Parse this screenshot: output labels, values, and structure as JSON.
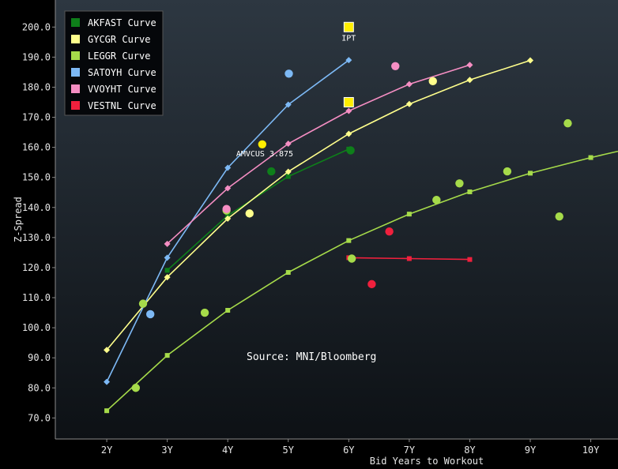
{
  "chart_data": {
    "type": "scatter",
    "title": "",
    "xlabel": "Bid Years to Workout",
    "ylabel": "Z-Spread",
    "xlim": [
      1.15,
      10.45
    ],
    "ylim": [
      63,
      209
    ],
    "x_ticks": [
      {
        "value": 2,
        "label": "2Y"
      },
      {
        "value": 3,
        "label": "3Y"
      },
      {
        "value": 4,
        "label": "4Y"
      },
      {
        "value": 5,
        "label": "5Y"
      },
      {
        "value": 6,
        "label": "6Y"
      },
      {
        "value": 7,
        "label": "7Y"
      },
      {
        "value": 8,
        "label": "8Y"
      },
      {
        "value": 9,
        "label": "9Y"
      },
      {
        "value": 10,
        "label": "10Y"
      }
    ],
    "y_ticks": [
      {
        "value": 70,
        "label": "70.0"
      },
      {
        "value": 80,
        "label": "80.0"
      },
      {
        "value": 90,
        "label": "90.0"
      },
      {
        "value": 100,
        "label": "100.0"
      },
      {
        "value": 110,
        "label": "110.0"
      },
      {
        "value": 120,
        "label": "120.0"
      },
      {
        "value": 130,
        "label": "130.0"
      },
      {
        "value": 140,
        "label": "140.0"
      },
      {
        "value": 150,
        "label": "150.0"
      },
      {
        "value": 160,
        "label": "160.0"
      },
      {
        "value": 170,
        "label": "170.0"
      },
      {
        "value": 180,
        "label": "180.0"
      },
      {
        "value": 190,
        "label": "190.0"
      },
      {
        "value": 200,
        "label": "200.0"
      }
    ],
    "grid": false,
    "legend_position": "top-left",
    "source_note": "Source: MNI/Bloomberg",
    "series": [
      {
        "name": "AKFAST Curve",
        "color": "#0e7f1a",
        "curve": [
          [
            3,
            119.1
          ],
          [
            4,
            137.3
          ],
          [
            5,
            150.3
          ],
          [
            6,
            159.4
          ]
        ],
        "bonds": [
          [
            4.72,
            152.0
          ],
          [
            6.03,
            159.0
          ]
        ]
      },
      {
        "name": "GYCGR Curve",
        "color": "#ffff8c",
        "curve": [
          [
            2,
            92.6
          ],
          [
            3,
            116.8
          ],
          [
            4,
            136.3
          ],
          [
            5,
            151.9
          ],
          [
            6,
            164.5
          ],
          [
            7,
            174.4
          ],
          [
            8,
            182.4
          ],
          [
            9,
            188.9
          ]
        ],
        "bonds": [
          [
            4.36,
            138.0
          ],
          [
            7.39,
            182.0
          ]
        ]
      },
      {
        "name": "LEGGR Curve",
        "color": "#a6db4a",
        "curve": [
          [
            2,
            72.4
          ],
          [
            3,
            90.8
          ],
          [
            4,
            105.8
          ],
          [
            5,
            118.4
          ],
          [
            6,
            129.0
          ],
          [
            7,
            137.8
          ],
          [
            8,
            145.2
          ],
          [
            9,
            151.4
          ],
          [
            10,
            156.6
          ],
          [
            10.45,
            158.7
          ]
        ],
        "bonds": [
          [
            2.48,
            80.0
          ],
          [
            2.6,
            108.0
          ],
          [
            3.62,
            105.0
          ],
          [
            3.98,
            139.0
          ],
          [
            6.05,
            123.0
          ],
          [
            7.45,
            142.5
          ],
          [
            7.83,
            148.0
          ],
          [
            8.62,
            152.0
          ],
          [
            9.48,
            137.0
          ],
          [
            9.62,
            168.0
          ]
        ]
      },
      {
        "name": "SATOYH Curve",
        "color": "#7db9f5",
        "curve": [
          [
            2,
            82.0
          ],
          [
            3,
            123.3
          ],
          [
            4,
            153.2
          ],
          [
            5,
            174.2
          ],
          [
            6,
            189.0
          ]
        ],
        "bonds": [
          [
            2.72,
            104.5
          ],
          [
            5.01,
            184.5
          ]
        ]
      },
      {
        "name": "VVOYHT Curve",
        "color": "#f58ec3",
        "curve": [
          [
            3,
            127.9
          ],
          [
            4,
            146.4
          ],
          [
            5,
            161.2
          ],
          [
            6,
            172.1
          ],
          [
            7,
            181.0
          ],
          [
            8,
            187.4
          ]
        ],
        "bonds": [
          [
            3.98,
            139.5
          ],
          [
            6.77,
            187.0
          ]
        ]
      },
      {
        "name": "VESTNL Curve",
        "color": "#f0203d",
        "curve": [
          [
            6,
            123.3
          ],
          [
            7,
            123.0
          ],
          [
            8,
            122.7
          ]
        ],
        "bonds": [
          [
            6.38,
            114.5
          ],
          [
            6.67,
            132.0
          ]
        ]
      }
    ],
    "highlight_points": [
      {
        "x": 4.57,
        "y": 161.0,
        "color": "#ffee00"
      }
    ],
    "annotations": [
      {
        "label": "IPT",
        "x": 6.0,
        "y": 200.0,
        "color": "#ffee00",
        "marker": "square"
      },
      {
        "label": "",
        "x": 6.0,
        "y": 175.0,
        "color": "#ffee00",
        "marker": "square"
      },
      {
        "label": "AMVCUS 3.875",
        "x": 4.57,
        "y": 161.0,
        "color": "#ffee00",
        "marker": "none"
      }
    ]
  }
}
